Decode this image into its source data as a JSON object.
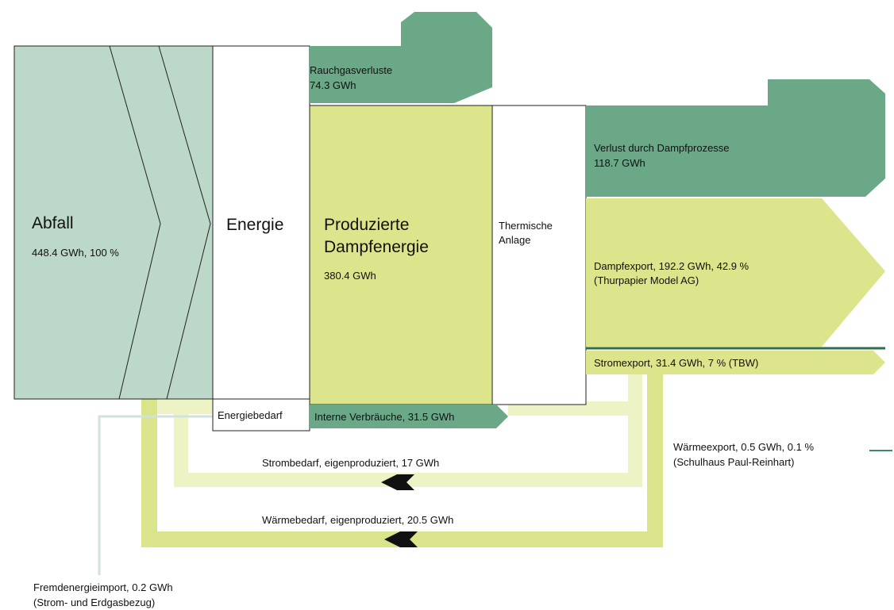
{
  "nodes": [
    {
      "label": [
        "Abfall"
      ],
      "value": "448.4 GWh, 100 %"
    },
    {
      "label": [
        "Energie"
      ]
    },
    {
      "label": [
        "Energiebedarf"
      ]
    },
    {
      "label": [
        "Rauchgasverluste"
      ],
      "value": "74.3 GWh"
    },
    {
      "label": [
        "Produzierte",
        "Dampfenergie"
      ],
      "value": "380.4 GWh"
    },
    {
      "label": [
        "Thermische",
        "Anlage"
      ]
    },
    {
      "label": [
        "Verlust durch Dampfprozesse"
      ],
      "value": "118.7 GWh"
    },
    {
      "label": [
        "Dampfexport, 192.2 GWh, 42.9 %",
        "(Thurpapier Model AG)"
      ]
    },
    {
      "label": [
        "Stromexport, 31.4 GWh, 7 % (TBW)"
      ]
    },
    {
      "label": [
        "Interne Verbräuche, 31.5 GWh"
      ]
    }
  ],
  "flows": [
    {
      "label": [
        "Strombedarf, eigenproduziert, 17 GWh"
      ]
    },
    {
      "label": [
        "Wärmebedarf, eigenproduziert, 20.5 GWh"
      ]
    },
    {
      "label": [
        "Wärmeexport, 0.5 GWh, 0.1 %",
        "(Schulhaus Paul-Reinhart)"
      ]
    },
    {
      "label": [
        "Fremdenergieimport, 0.2 GWh",
        "(Strom- und Erdgasbezug)"
      ]
    }
  ]
}
